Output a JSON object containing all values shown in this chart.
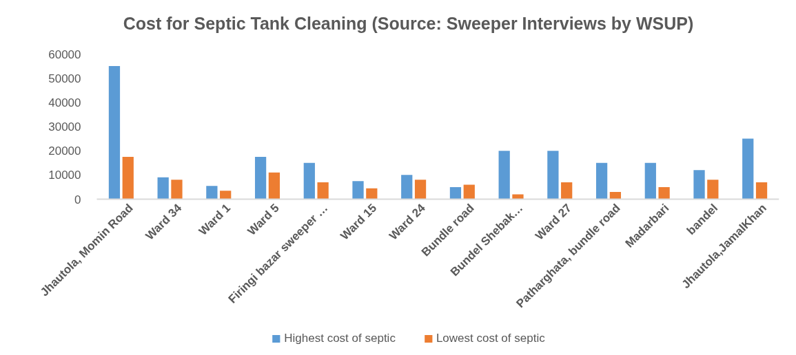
{
  "chart_data": {
    "type": "bar",
    "title": "Cost for Septic Tank Cleaning (Source: Sweeper Interviews by WSUP)",
    "categories": [
      "Jhautola, Momin Road",
      "Ward 34",
      "Ward 1",
      "Ward 5",
      "Firingi bazar sweeper …",
      "Ward 15",
      "Ward 24",
      "Bundle road",
      "Bundel Shebak…",
      "Ward 27",
      "Patharghata, bundle road",
      "Madarbari",
      "bandel",
      "Jhautola,JamalKhan"
    ],
    "series": [
      {
        "name": "Highest cost of septic",
        "color": "#5b9bd5",
        "values": [
          55000,
          9000,
          5500,
          17500,
          15000,
          7500,
          10000,
          5000,
          20000,
          20000,
          15000,
          15000,
          12000,
          25000
        ]
      },
      {
        "name": "Lowest cost of septic",
        "color": "#ed7d31",
        "values": [
          17500,
          8000,
          3500,
          11000,
          7000,
          4500,
          8000,
          6000,
          2000,
          7000,
          3000,
          5000,
          8000,
          7000
        ]
      }
    ],
    "ylim": [
      0,
      60000
    ],
    "yticks": [
      0,
      10000,
      20000,
      30000,
      40000,
      50000,
      60000
    ],
    "grid": false,
    "legend": "bottom"
  }
}
